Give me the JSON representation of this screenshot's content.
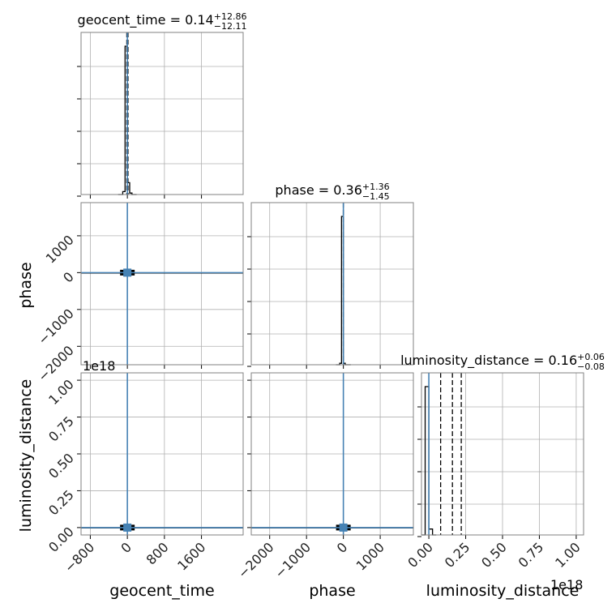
{
  "chart_data": {
    "type": "corner",
    "parameters": [
      "geocent_time",
      "phase",
      "luminosity_distance"
    ],
    "axis_labels": {
      "geocent_time": "geocent_time",
      "phase": "phase",
      "luminosity_distance": "luminosity_distance"
    },
    "titles": [
      {
        "param": "geocent_time",
        "text": "geocent_time = 0.14",
        "plus": "+12.86",
        "minus": "−12.11"
      },
      {
        "param": "phase",
        "text": "phase = 0.36",
        "plus": "+1.36",
        "minus": "−1.45"
      },
      {
        "param": "luminosity_distance",
        "text": "luminosity_distance = 0.16",
        "plus": "+0.06",
        "minus": "−0.08"
      }
    ],
    "offset_label": "1e18",
    "offset_label_x": "1e18",
    "ranges": {
      "geocent_time": [
        -1000,
        2500
      ],
      "phase": [
        -2500,
        1900
      ],
      "luminosity_distance": [
        -0.05,
        1.05
      ]
    },
    "ticks": {
      "geocent_time": {
        "values": [
          -800,
          0,
          800,
          1600
        ],
        "labels": [
          "−800",
          "0",
          "800",
          "1600"
        ]
      },
      "phase_x": {
        "values": [
          -2000,
          -1000,
          0,
          1000
        ],
        "labels": [
          "−2000",
          "−1000",
          "0",
          "1000"
        ]
      },
      "phase_y": {
        "values": [
          1000,
          0,
          -1000,
          -2000
        ],
        "labels": [
          "1000",
          "0",
          "−1000",
          "−2000"
        ]
      },
      "luminosity_distance_x": {
        "values": [
          0.0,
          0.25,
          0.5,
          0.75,
          1.0
        ],
        "labels": [
          "0.00",
          "0.25",
          "0.50",
          "0.75",
          "1.00"
        ]
      },
      "luminosity_distance_y": {
        "values": [
          1.0,
          0.75,
          0.5,
          0.25,
          0.0
        ],
        "labels": [
          "1.00",
          "0.75",
          "0.50",
          "0.25",
          "0.00"
        ]
      }
    },
    "truths": {
      "geocent_time": 0,
      "phase": 0,
      "luminosity_distance": 0
    },
    "medians": {
      "geocent_time": 0.14,
      "phase": 0.36,
      "luminosity_distance": 0.16
    },
    "quantiles": {
      "geocent_time": [
        -11.97,
        13.0
      ],
      "phase": [
        -1.09,
        1.72
      ],
      "luminosity_distance": [
        0.08,
        0.22
      ]
    },
    "histograms": {
      "geocent_time": {
        "edges": [
          -200,
          -150,
          -100,
          -50,
          0,
          50,
          100,
          150,
          200
        ],
        "values": [
          0,
          0,
          0.02,
          1.0,
          0.08,
          0.01,
          0,
          0
        ]
      },
      "phase": {
        "edges": [
          -200,
          -150,
          -100,
          -50,
          0,
          50,
          100,
          150,
          200
        ],
        "values": [
          0,
          0,
          0.01,
          1.0,
          0.01,
          0,
          0,
          0
        ]
      },
      "luminosity_distance": {
        "edges": [
          -0.05,
          -0.025,
          0.0,
          0.025,
          0.05
        ],
        "values": [
          0,
          1.0,
          0.04,
          0
        ]
      }
    },
    "grid": true
  }
}
